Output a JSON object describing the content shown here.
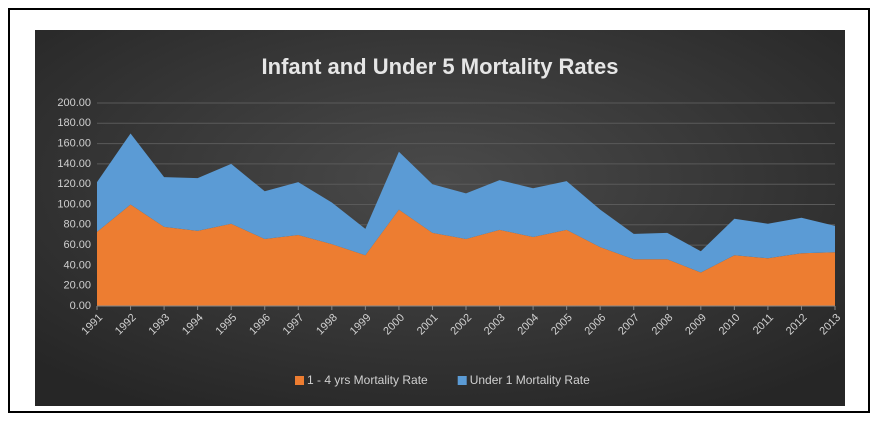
{
  "chart_data": {
    "type": "stacked_area",
    "title": "Infant and Under 5 Mortality Rates",
    "categories": [
      "1991",
      "1992",
      "1993",
      "1994",
      "1995",
      "1996",
      "1997",
      "1998",
      "1999",
      "2000",
      "2001",
      "2002",
      "2003",
      "2004",
      "2005",
      "2006",
      "2007",
      "2008",
      "2009",
      "2010",
      "2011",
      "2012",
      "2013"
    ],
    "series": [
      {
        "name": "1 - 4 yrs Mortality Rate",
        "color": "#ed7d31",
        "values": [
          73,
          100,
          78,
          74,
          81,
          66,
          70,
          61,
          50,
          95,
          72,
          66,
          75,
          68,
          75,
          58,
          46,
          46,
          33,
          50,
          47,
          52,
          53
        ]
      },
      {
        "name": "Under 1 Mortality Rate",
        "color": "#5b9bd5",
        "values": [
          49,
          70,
          49,
          52,
          59,
          47,
          52,
          41,
          26,
          57,
          48,
          45,
          49,
          48,
          48,
          37,
          25,
          26,
          21,
          36,
          34,
          35,
          26
        ]
      }
    ],
    "ylim": [
      0,
      200
    ],
    "yticks": [
      {
        "value": 0,
        "label": "0.00"
      },
      {
        "value": 20,
        "label": "20.00"
      },
      {
        "value": 40,
        "label": "40.00"
      },
      {
        "value": 60,
        "label": "60.00"
      },
      {
        "value": 80,
        "label": "80.00"
      },
      {
        "value": 100,
        "label": "100.00"
      },
      {
        "value": 120,
        "label": "120.00"
      },
      {
        "value": 140,
        "label": "140.00"
      },
      {
        "value": 160,
        "label": "160.00"
      },
      {
        "value": 180,
        "label": "180.00"
      },
      {
        "value": 200,
        "label": "200.00"
      }
    ],
    "grid": true,
    "legend": "bottom"
  }
}
